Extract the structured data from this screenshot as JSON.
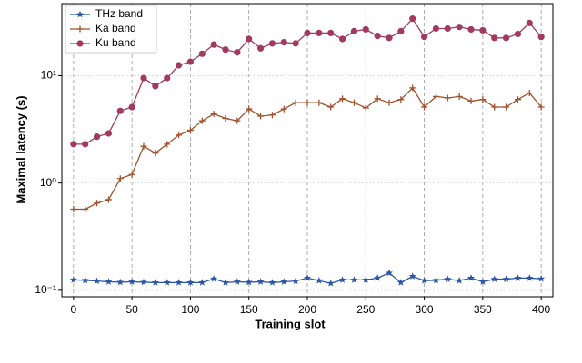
{
  "chart_data": {
    "type": "line",
    "xlabel": "Training slot",
    "ylabel": "Maximal latency (s)",
    "x": [
      0,
      10,
      20,
      30,
      40,
      50,
      60,
      70,
      80,
      90,
      100,
      110,
      120,
      130,
      140,
      150,
      160,
      170,
      180,
      190,
      200,
      210,
      220,
      230,
      240,
      250,
      260,
      270,
      280,
      290,
      300,
      310,
      320,
      330,
      340,
      350,
      360,
      370,
      380,
      390,
      400
    ],
    "xlim": [
      -10,
      410
    ],
    "xticks": [
      0,
      50,
      100,
      150,
      200,
      250,
      300,
      350,
      400
    ],
    "ylim": [
      0.087,
      47
    ],
    "log_y": true,
    "yticks": [
      {
        "value": 0.1,
        "label": "10⁻¹"
      },
      {
        "value": 1,
        "label": "10⁰"
      },
      {
        "value": 10,
        "label": "10¹"
      }
    ],
    "grid": true,
    "legend": "upper left",
    "series": [
      {
        "name": "THz band",
        "color": "#2a56a8",
        "marker": "star",
        "values": [
          0.125,
          0.124,
          0.122,
          0.12,
          0.119,
          0.12,
          0.119,
          0.118,
          0.118,
          0.118,
          0.118,
          0.118,
          0.128,
          0.118,
          0.12,
          0.119,
          0.12,
          0.118,
          0.12,
          0.122,
          0.13,
          0.123,
          0.116,
          0.125,
          0.125,
          0.125,
          0.13,
          0.145,
          0.118,
          0.135,
          0.123,
          0.124,
          0.127,
          0.123,
          0.13,
          0.12,
          0.127,
          0.127,
          0.13,
          0.13,
          0.128
        ]
      },
      {
        "name": "Ka band",
        "color": "#a0522d",
        "marker": "plus",
        "values": [
          0.57,
          0.57,
          0.65,
          0.7,
          1.1,
          1.2,
          2.2,
          1.9,
          2.3,
          2.8,
          3.1,
          3.8,
          4.4,
          4.0,
          3.8,
          4.9,
          4.2,
          4.3,
          4.9,
          5.6,
          5.6,
          5.6,
          5.1,
          6.1,
          5.6,
          5.0,
          6.1,
          5.6,
          6.0,
          7.7,
          5.1,
          6.4,
          6.2,
          6.4,
          5.8,
          6.0,
          5.1,
          5.1,
          6.0,
          6.9,
          5.1
        ]
      },
      {
        "name": "Ku band",
        "color": "#a23a60",
        "marker": "circle",
        "values": [
          2.3,
          2.3,
          2.7,
          2.9,
          4.7,
          5.1,
          9.5,
          8.0,
          9.5,
          12.5,
          13.5,
          16,
          19.5,
          17.5,
          16.5,
          22,
          18,
          20,
          20.5,
          20,
          25,
          25,
          25,
          22,
          26,
          27,
          23.5,
          22.5,
          26,
          34,
          23,
          27.5,
          27.5,
          28.5,
          27,
          26.5,
          22.5,
          22.5,
          24.5,
          31,
          23
        ]
      }
    ]
  }
}
